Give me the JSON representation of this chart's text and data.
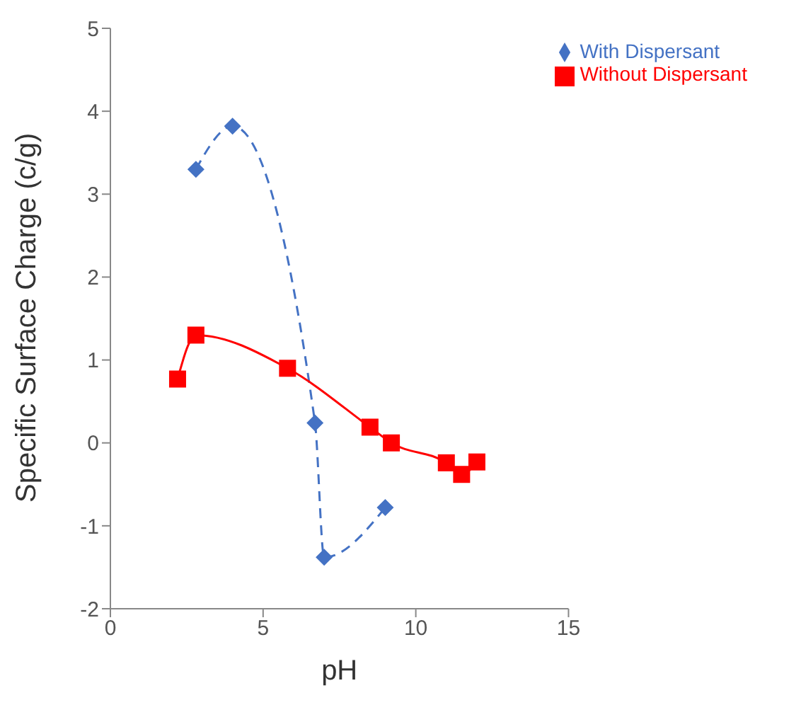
{
  "chart_data": {
    "type": "line",
    "xlabel": "pH",
    "ylabel": "Specific Surface Charge (c/g)",
    "xlim": [
      0,
      15
    ],
    "xticks": [
      0,
      5,
      10,
      15
    ],
    "ylim": [
      -2,
      5
    ],
    "yticks": [
      -2,
      -1,
      0,
      1,
      2,
      3,
      4,
      5
    ],
    "grid": false,
    "legend": "top right",
    "series": [
      {
        "name": "With Dispersant",
        "color": "#4472c4",
        "marker": "diamond",
        "line_style": "dashed",
        "x": [
          2.8,
          4.0,
          6.7,
          7.0,
          9.0
        ],
        "values": [
          3.3,
          3.82,
          0.24,
          -1.38,
          -0.78
        ]
      },
      {
        "name": "Without Dispersant",
        "color": "#ff0000",
        "marker": "square",
        "line_style": "solid",
        "x": [
          2.2,
          2.8,
          5.8,
          8.5,
          9.2,
          11.0,
          11.5,
          12.0
        ],
        "values": [
          0.77,
          1.3,
          0.9,
          0.19,
          0,
          -0.24,
          -0.38,
          -0.23
        ]
      }
    ]
  }
}
